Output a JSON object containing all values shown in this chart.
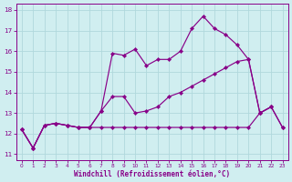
{
  "xlabel": "Windchill (Refroidissement éolien,°C)",
  "background_color": "#d0eef0",
  "grid_color": "#b0d8dc",
  "line_color": "#880088",
  "xlim": [
    -0.5,
    23.5
  ],
  "ylim": [
    10.7,
    18.3
  ],
  "yticks": [
    11,
    12,
    13,
    14,
    15,
    16,
    17,
    18
  ],
  "xticks": [
    0,
    1,
    2,
    3,
    4,
    5,
    6,
    7,
    8,
    9,
    10,
    11,
    12,
    13,
    14,
    15,
    16,
    17,
    18,
    19,
    20,
    21,
    22,
    23
  ],
  "line1_x": [
    0,
    1,
    2,
    3,
    4,
    5,
    6,
    7,
    8,
    9,
    10,
    11,
    12,
    13,
    14,
    15,
    16,
    17,
    18,
    19,
    20,
    21,
    22
  ],
  "line1_y": [
    12.2,
    11.3,
    12.4,
    12.5,
    12.4,
    12.3,
    12.3,
    13.1,
    15.9,
    15.8,
    16.1,
    15.3,
    15.6,
    15.6,
    16.0,
    17.1,
    17.7,
    17.1,
    16.8,
    16.3,
    15.6,
    13.0,
    13.3
  ],
  "line2_x": [
    0,
    1,
    2,
    3,
    4,
    5,
    6,
    7,
    8,
    9,
    10,
    11,
    12,
    13,
    14,
    15,
    16,
    17,
    18,
    19,
    20,
    21,
    22,
    23
  ],
  "line2_y": [
    12.2,
    11.3,
    12.4,
    12.5,
    12.4,
    12.3,
    12.3,
    13.1,
    13.8,
    13.8,
    13.0,
    13.1,
    13.3,
    13.8,
    14.0,
    14.3,
    14.6,
    14.9,
    15.2,
    15.5,
    15.6,
    13.0,
    13.3,
    12.3
  ],
  "line3_x": [
    0,
    1,
    2,
    3,
    4,
    5,
    6,
    7,
    8,
    9,
    10,
    11,
    12,
    13,
    14,
    15,
    16,
    17,
    18,
    19,
    20,
    21,
    22,
    23
  ],
  "line3_y": [
    12.2,
    11.3,
    12.4,
    12.5,
    12.4,
    12.3,
    12.3,
    12.3,
    12.3,
    12.3,
    12.3,
    12.3,
    12.3,
    12.3,
    12.3,
    12.3,
    12.3,
    12.3,
    12.3,
    12.3,
    12.3,
    13.0,
    13.3,
    12.3
  ]
}
